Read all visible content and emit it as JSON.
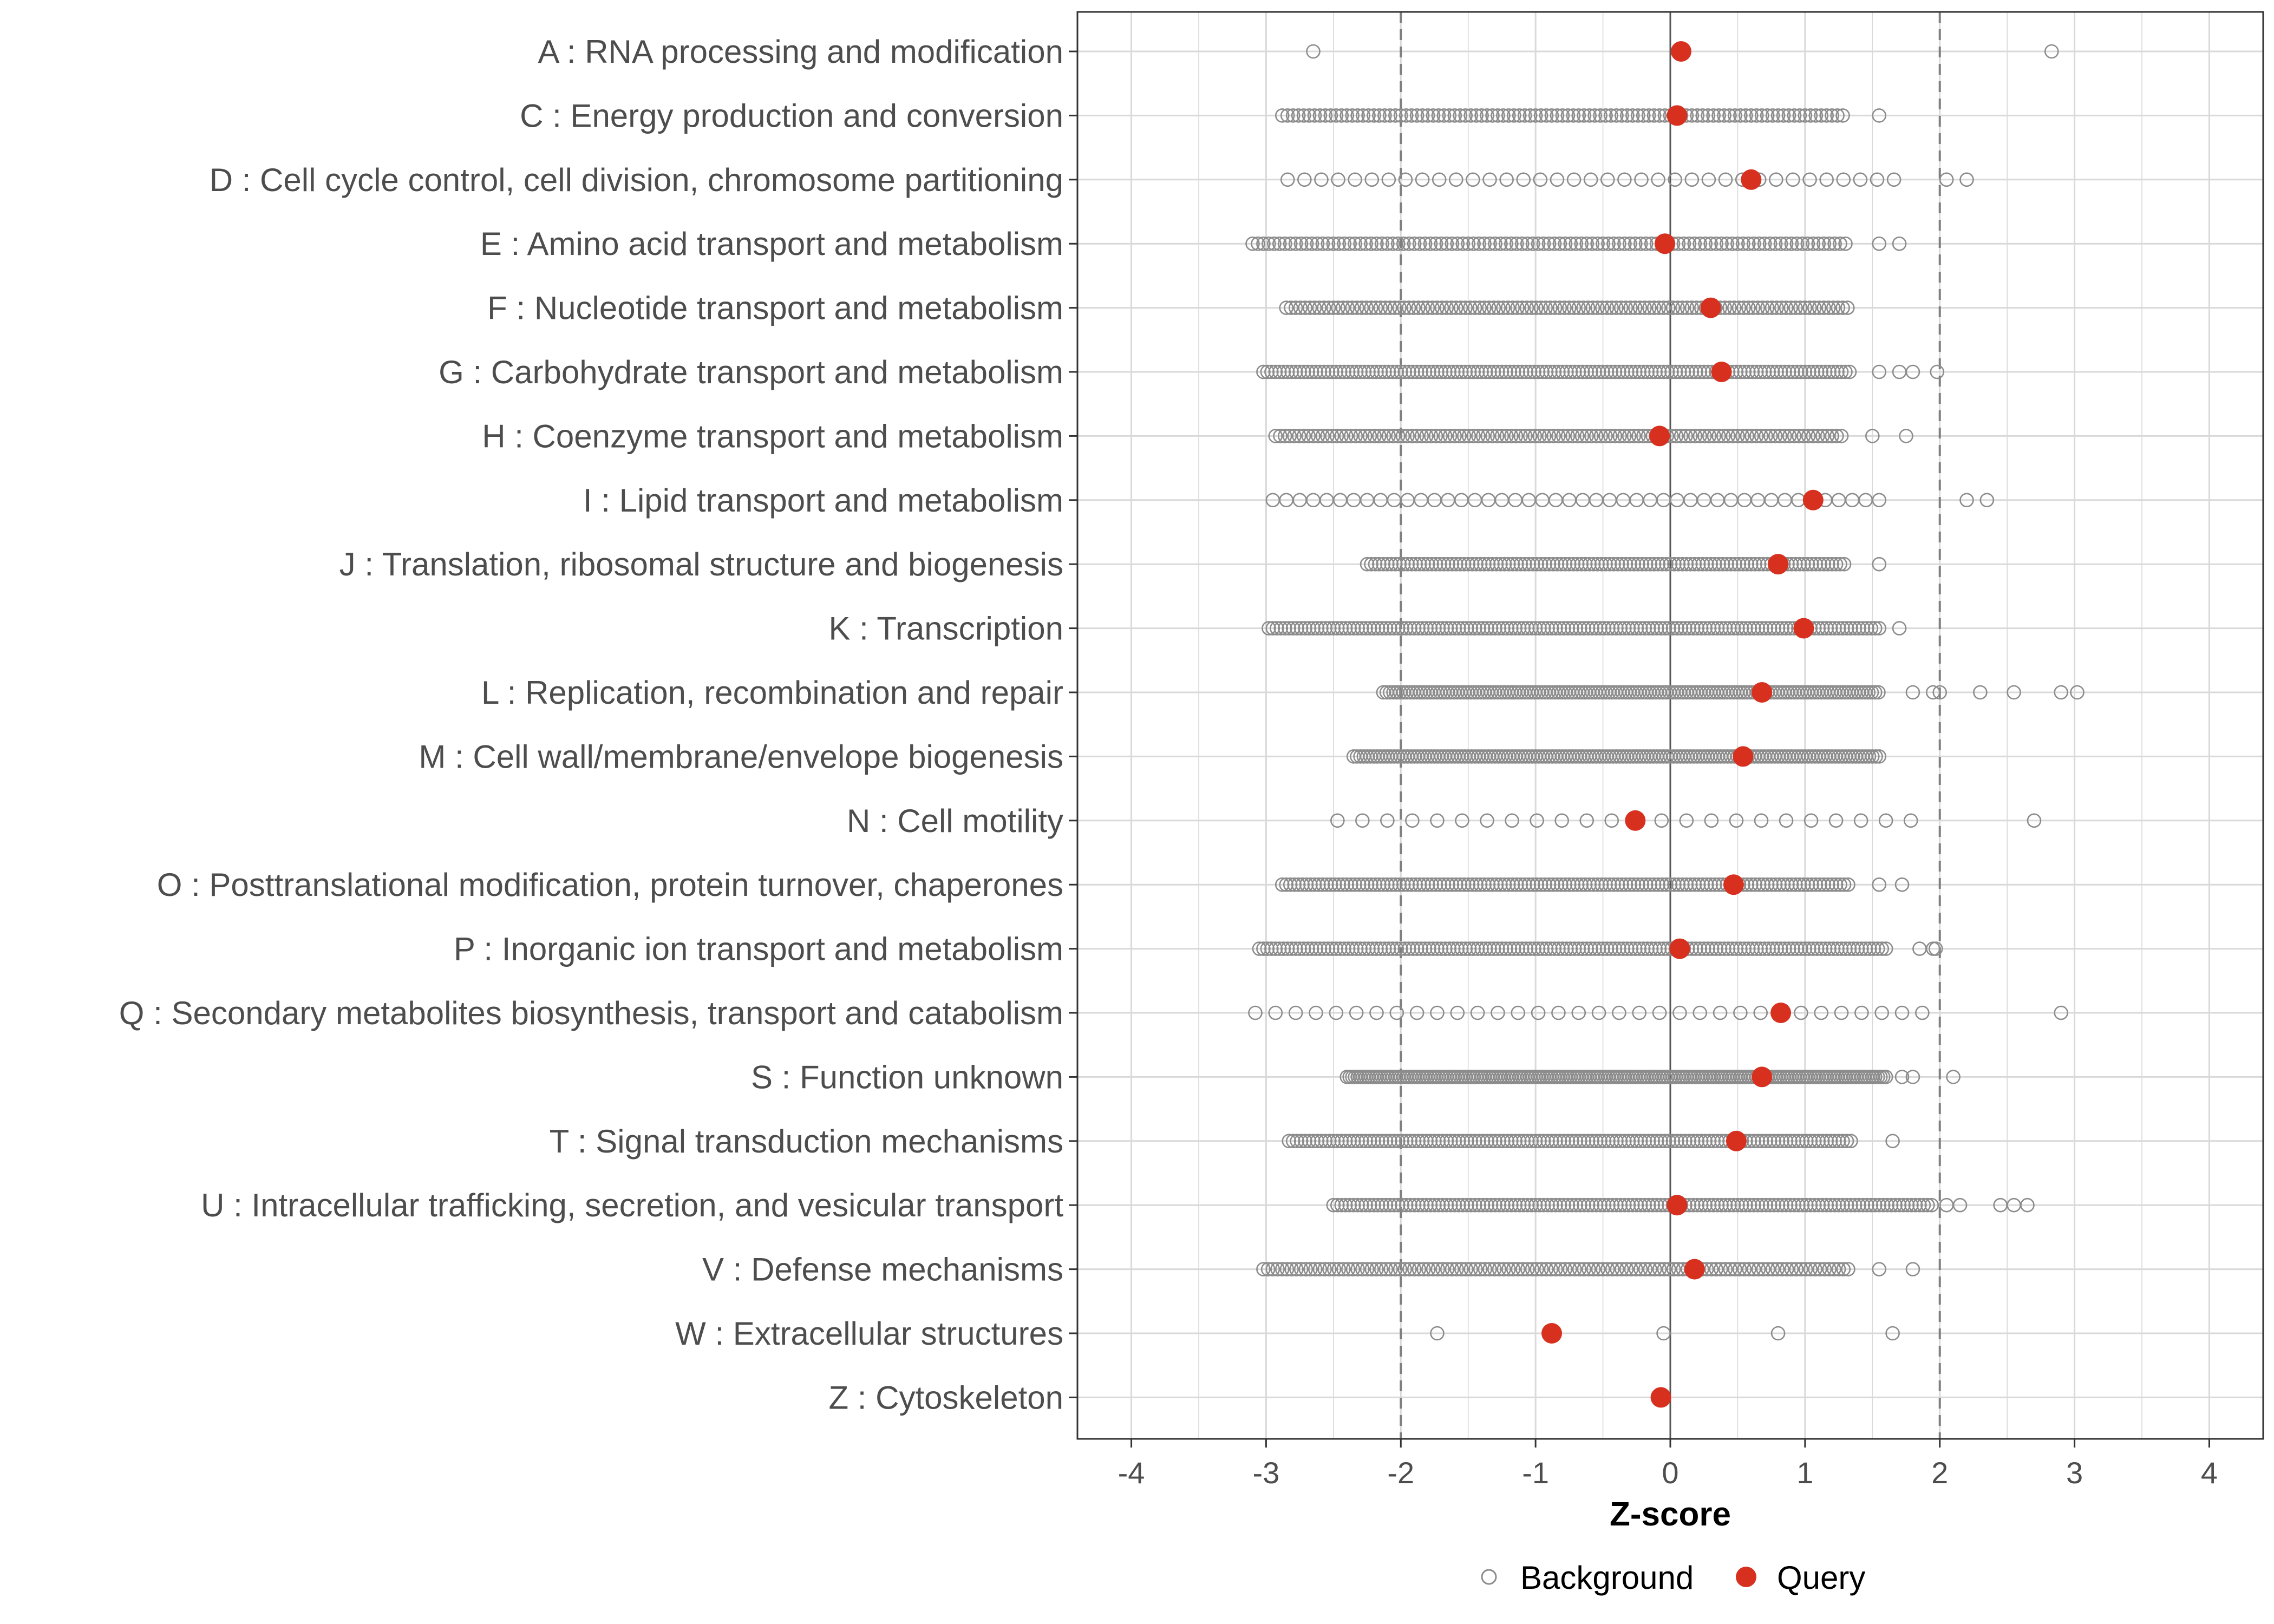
{
  "chart_data": {
    "type": "scatter",
    "title": "",
    "xlabel": "Z-score",
    "ylabel": "",
    "xlim": [
      -4.4,
      4.4
    ],
    "x_ticks": [
      "-4",
      "-3",
      "-2",
      "-1",
      "0",
      "1",
      "2",
      "3",
      "4"
    ],
    "threshold_lines": [
      -2,
      2
    ],
    "reference_line": 0,
    "grid": true,
    "legend_position": "bottom",
    "legend": {
      "background_label": "Background",
      "query_label": "Query"
    },
    "colors": {
      "query": "#d7301f",
      "background": "#8c8c8c",
      "grid": "#d9d9d9",
      "threshold": "#7f7f7f",
      "zero": "#555555"
    },
    "categories": [
      "A : RNA processing and modification",
      "C : Energy production and conversion",
      "D : Cell cycle control, cell division, chromosome partitioning",
      "E : Amino acid transport and metabolism",
      "F : Nucleotide transport and metabolism",
      "G : Carbohydrate transport and metabolism",
      "H : Coenzyme transport and metabolism",
      "I : Lipid transport and metabolism",
      "J : Translation, ribosomal structure and biogenesis",
      "K : Transcription",
      "L : Replication, recombination and repair",
      "M : Cell wall/membrane/envelope biogenesis",
      "N : Cell motility",
      "O : Posttranslational modification, protein turnover, chaperones",
      "P : Inorganic ion transport and metabolism",
      "Q : Secondary metabolites biosynthesis, transport and catabolism",
      "S : Function unknown",
      "T : Signal transduction mechanisms",
      "U : Intracellular trafficking, secretion, and vesicular transport",
      "V : Defense mechanisms",
      "W : Extracellular structures",
      "Z : Cytoskeleton"
    ],
    "query": [
      0.08,
      0.05,
      0.6,
      -0.04,
      0.3,
      0.38,
      -0.08,
      1.06,
      0.8,
      0.99,
      0.68,
      0.54,
      -0.26,
      0.47,
      0.07,
      0.82,
      0.68,
      0.49,
      0.05,
      0.18,
      -0.88,
      -0.07
    ],
    "background_spread": [
      {
        "min": -2.65,
        "max": 2.83,
        "step": 0,
        "extra": []
      },
      {
        "min": -2.88,
        "max": 1.3,
        "step": 0.04,
        "extra": [
          1.55
        ]
      },
      {
        "min": -2.84,
        "max": 1.78,
        "step": 0.125,
        "extra": [
          2.05,
          2.2
        ]
      },
      {
        "min": -3.1,
        "max": 1.3,
        "step": 0.04,
        "extra": [
          1.55,
          1.7
        ]
      },
      {
        "min": -2.85,
        "max": 1.33,
        "step": 0.035,
        "extra": []
      },
      {
        "min": -3.02,
        "max": 1.35,
        "step": 0.03,
        "extra": [
          1.55,
          1.7,
          1.8,
          1.98
        ]
      },
      {
        "min": -2.93,
        "max": 1.3,
        "step": 0.035,
        "extra": [
          1.5,
          1.75
        ]
      },
      {
        "min": -2.95,
        "max": 1.6,
        "step": 0.1,
        "extra": [
          2.2,
          2.35
        ]
      },
      {
        "min": -2.25,
        "max": 1.3,
        "step": 0.03,
        "extra": [
          1.55
        ]
      },
      {
        "min": -2.98,
        "max": 1.55,
        "step": 0.03,
        "extra": [
          1.7
        ]
      },
      {
        "min": -2.13,
        "max": 1.55,
        "step": 0.025,
        "extra": [
          1.8,
          1.95,
          2.0,
          2.3,
          2.55,
          2.9,
          3.02
        ]
      },
      {
        "min": -2.35,
        "max": 1.55,
        "step": 0.025,
        "extra": []
      },
      {
        "min": -2.47,
        "max": 1.95,
        "step": 0.185,
        "extra": [
          2.7
        ]
      },
      {
        "min": -2.88,
        "max": 1.33,
        "step": 0.03,
        "extra": [
          1.55,
          1.72
        ]
      },
      {
        "min": -3.05,
        "max": 1.6,
        "step": 0.03,
        "extra": [
          1.85,
          1.95,
          1.97
        ]
      },
      {
        "min": -3.08,
        "max": 1.97,
        "step": 0.15,
        "extra": [
          2.9
        ]
      },
      {
        "min": -2.4,
        "max": 1.6,
        "step": 0.02,
        "extra": [
          1.72,
          1.8,
          2.1
        ]
      },
      {
        "min": -2.83,
        "max": 1.35,
        "step": 0.03,
        "extra": [
          1.65
        ]
      },
      {
        "min": -2.5,
        "max": 1.95,
        "step": 0.03,
        "extra": [
          2.05,
          2.15,
          2.45,
          2.55,
          2.65
        ]
      },
      {
        "min": -3.02,
        "max": 1.35,
        "step": 0.035,
        "extra": [
          1.55,
          1.8
        ]
      },
      {
        "min": -1.73,
        "max": 1.65,
        "step": 0,
        "extra": [
          -0.05,
          0.8
        ]
      },
      {
        "min": 0,
        "max": 0,
        "step": 0,
        "extra": []
      }
    ]
  }
}
